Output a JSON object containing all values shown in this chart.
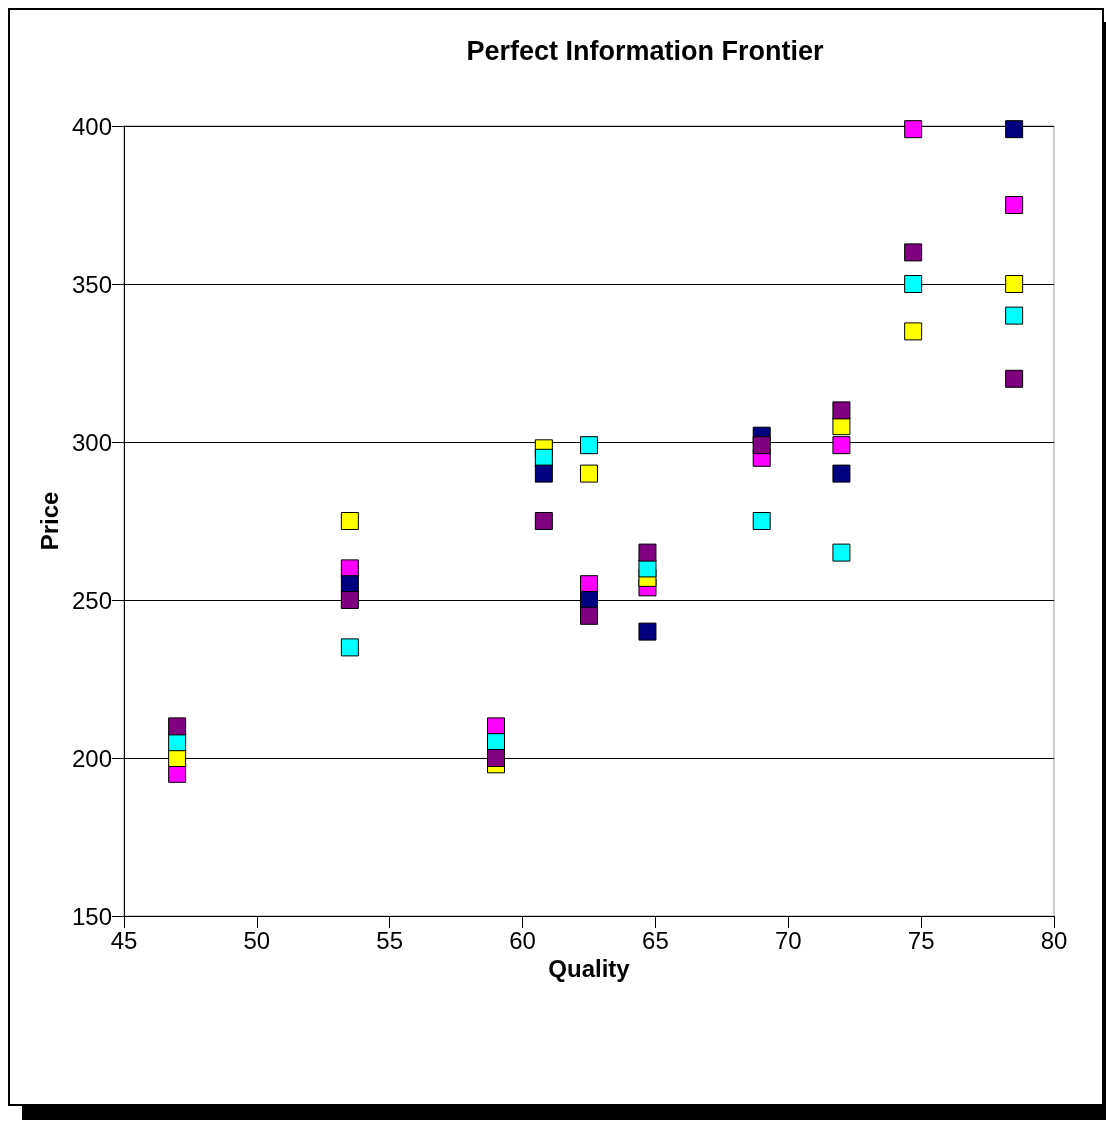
{
  "chart_data": {
    "type": "scatter",
    "title": "Perfect Information Frontier",
    "xlabel": "Quality",
    "ylabel": "Price",
    "x": [
      47,
      53.5,
      59,
      60.8,
      62.5,
      64.7,
      69,
      72,
      74.7,
      78.5
    ],
    "series": [
      {
        "color": "#ff00ff",
        "values": [
          195,
          260,
          210,
          null,
          255,
          254,
          295,
          299,
          399,
          375
        ]
      },
      {
        "color": "#ffff00",
        "values": [
          200,
          275,
          198,
          298,
          290,
          257,
          null,
          305,
          335,
          350
        ]
      },
      {
        "color": "#00ffff",
        "values": [
          205,
          235,
          205,
          295,
          299,
          260,
          275,
          265,
          350,
          340
        ]
      },
      {
        "color": "#000080",
        "values": [
          null,
          255,
          null,
          290,
          250,
          240,
          302,
          290,
          null,
          399
        ]
      },
      {
        "color": "#800080",
        "values": [
          210,
          250,
          200,
          275,
          245,
          265,
          299,
          310,
          360,
          320
        ]
      }
    ],
    "xlim": [
      45,
      80
    ],
    "xticks": [
      45,
      50,
      55,
      60,
      65,
      70,
      75,
      80
    ],
    "ylim": [
      150,
      400
    ],
    "yticks": [
      150,
      200,
      250,
      300,
      350,
      400
    ],
    "grid": "y",
    "marker": "square"
  }
}
